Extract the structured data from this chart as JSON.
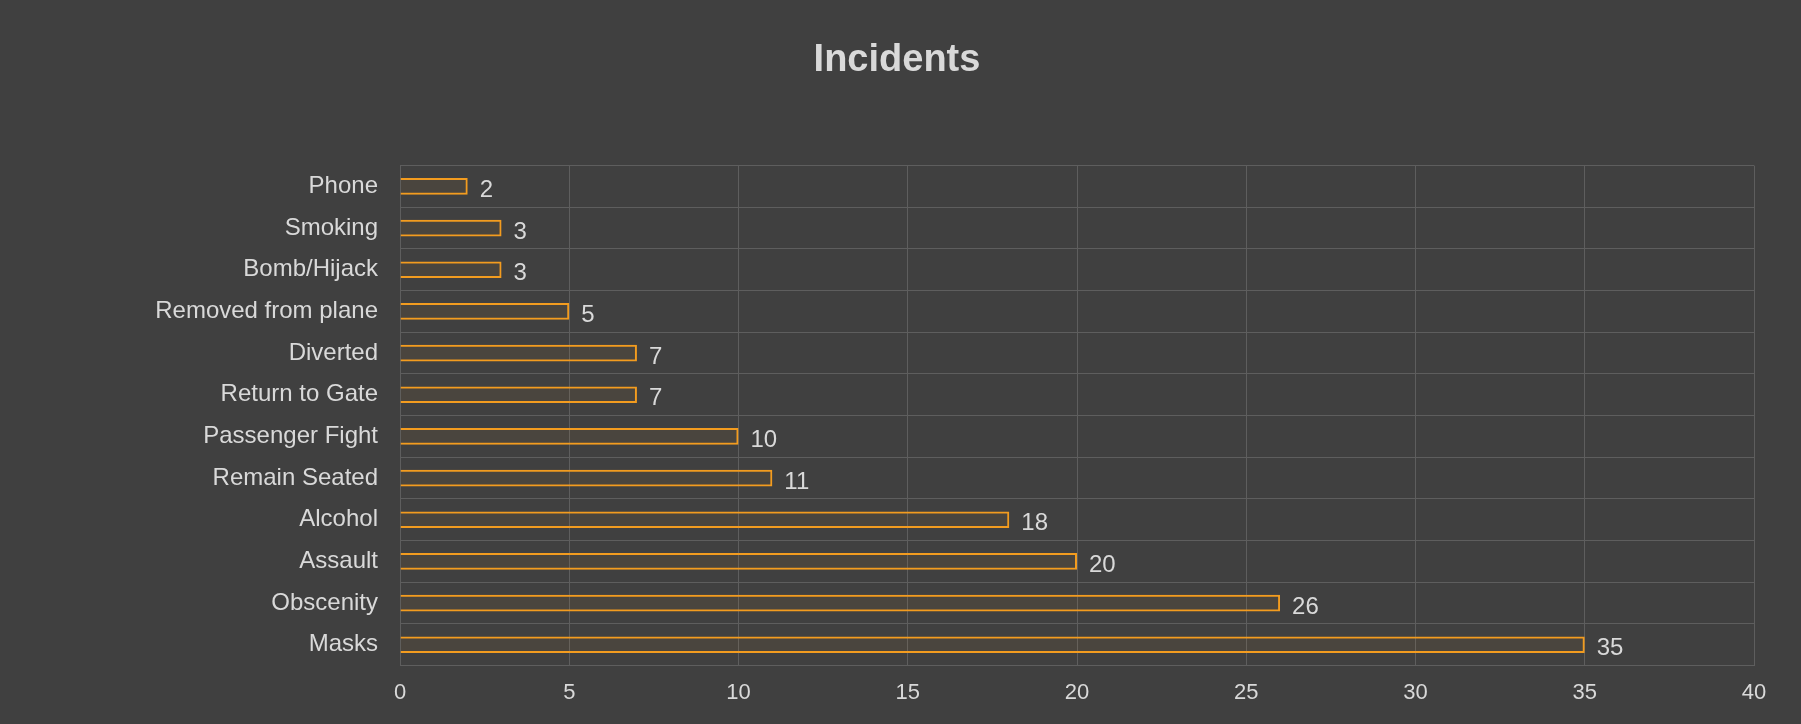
{
  "chart_data": {
    "type": "bar",
    "title": "Incidents",
    "orientation": "horizontal",
    "categories": [
      "Phone",
      "Smoking",
      "Bomb/Hijack",
      "Removed from plane",
      "Diverted",
      "Return to Gate",
      "Passenger Fight",
      "Remain Seated",
      "Alcohol",
      "Assault",
      "Obscenity",
      "Masks"
    ],
    "values": [
      2,
      3,
      3,
      5,
      7,
      7,
      10,
      11,
      18,
      20,
      26,
      35
    ],
    "color": "#f39c1f",
    "xlim": [
      0,
      40
    ],
    "xticks": [
      0,
      5,
      10,
      15,
      20,
      25,
      30,
      35,
      40
    ],
    "grid": true,
    "data_labels": true
  }
}
